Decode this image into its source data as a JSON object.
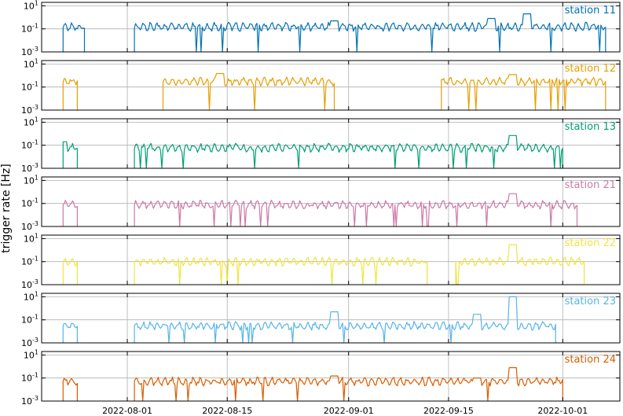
{
  "chart_data": {
    "type": "line",
    "ylabel": "trigger rate [Hz]",
    "y_scale": "log",
    "ylim": [
      0.001,
      20
    ],
    "y_ticks": [
      0.001,
      0.1,
      10
    ],
    "y_tick_labels": [
      "10^-3",
      "10^-1",
      "10^1"
    ],
    "xlim": [
      "2022-07-20",
      "2022-10-09"
    ],
    "x_ticks": [
      "2022-08-01",
      "2022-08-15",
      "2022-09-01",
      "2022-09-15",
      "2022-10-01"
    ],
    "grid": true,
    "panels": [
      {
        "name": "station 11",
        "color": "#0072b2",
        "baseline": 0.15,
        "segments": [
          [
            "2022-07-23",
            "2022-07-26"
          ],
          [
            "2022-08-02",
            "2022-10-07"
          ]
        ],
        "spikes": [
          [
            "2022-08-30",
            0.5
          ],
          [
            "2022-09-21",
            0.8
          ],
          [
            "2022-09-26",
            2
          ]
        ]
      },
      {
        "name": "station 12",
        "color": "#e69f00",
        "baseline": 0.3,
        "segments": [
          [
            "2022-07-23",
            "2022-07-25"
          ],
          [
            "2022-08-06",
            "2022-08-30"
          ],
          [
            "2022-09-14",
            "2022-10-07"
          ]
        ],
        "spikes": [
          [
            "2022-08-14",
            1.5
          ],
          [
            "2022-09-24",
            1.2
          ]
        ]
      },
      {
        "name": "station 13",
        "color": "#009e73",
        "baseline": 0.06,
        "segments": [
          [
            "2022-07-23",
            "2022-07-25"
          ],
          [
            "2022-08-02",
            "2022-10-01"
          ]
        ],
        "spikes": [
          [
            "2022-07-23",
            0.2
          ],
          [
            "2022-09-24",
            0.7
          ]
        ]
      },
      {
        "name": "station 21",
        "color": "#cc79a7",
        "baseline": 0.08,
        "segments": [
          [
            "2022-07-23",
            "2022-07-25"
          ],
          [
            "2022-08-02",
            "2022-10-03"
          ]
        ],
        "spikes": [
          [
            "2022-09-24",
            0.7
          ]
        ]
      },
      {
        "name": "station 22",
        "color": "#f0e442",
        "baseline": 0.1,
        "segments": [
          [
            "2022-07-23",
            "2022-07-25"
          ],
          [
            "2022-08-02",
            "2022-09-12"
          ],
          [
            "2022-09-16",
            "2022-10-04"
          ]
        ],
        "spikes": [
          [
            "2022-09-24",
            3
          ]
        ]
      },
      {
        "name": "station 23",
        "color": "#56b4e9",
        "baseline": 0.03,
        "segments": [
          [
            "2022-07-23",
            "2022-07-25"
          ],
          [
            "2022-08-02",
            "2022-09-30"
          ]
        ],
        "spikes": [
          [
            "2022-08-30",
            0.5
          ],
          [
            "2022-09-19",
            0.3
          ],
          [
            "2022-09-24",
            10
          ]
        ]
      },
      {
        "name": "station 24",
        "color": "#d55e00",
        "baseline": 0.05,
        "segments": [
          [
            "2022-07-23",
            "2022-07-25"
          ],
          [
            "2022-08-02",
            "2022-10-01"
          ]
        ],
        "spikes": [
          [
            "2022-08-30",
            0.15
          ],
          [
            "2022-09-19",
            0.1
          ],
          [
            "2022-09-24",
            0.8
          ]
        ]
      }
    ]
  }
}
